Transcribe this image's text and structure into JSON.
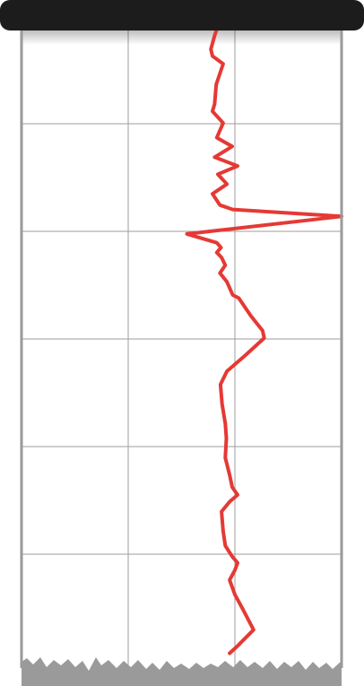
{
  "recorder": {
    "paper_color": "#ffffff",
    "grid_color": "#9e9e9e",
    "frame_color": "#9a9a9a",
    "roller_color": "#1c1c1c",
    "trace_color": "#e53935",
    "trace_color_fading": "#ef6b6b",
    "grid_columns": 3,
    "grid_rows": 6
  },
  "trace": {
    "x_min": -3,
    "x_max": 3,
    "points": [
      [
        0.6,
        0.0
      ],
      [
        0.7,
        0.011
      ],
      [
        0.62,
        0.036
      ],
      [
        0.55,
        0.064
      ],
      [
        0.58,
        0.078
      ],
      [
        0.78,
        0.094
      ],
      [
        0.65,
        0.136
      ],
      [
        0.62,
        0.176
      ],
      [
        0.58,
        0.191
      ],
      [
        0.78,
        0.215
      ],
      [
        0.66,
        0.245
      ],
      [
        0.95,
        0.263
      ],
      [
        0.62,
        0.285
      ],
      [
        1.05,
        0.303
      ],
      [
        0.68,
        0.32
      ],
      [
        0.85,
        0.34
      ],
      [
        0.58,
        0.36
      ],
      [
        0.72,
        0.383
      ],
      [
        0.96,
        0.392
      ],
      [
        3.0,
        0.406
      ],
      [
        0.1,
        0.442
      ],
      [
        0.66,
        0.46
      ],
      [
        0.74,
        0.47
      ],
      [
        0.66,
        0.48
      ],
      [
        0.75,
        0.49
      ],
      [
        0.82,
        0.506
      ],
      [
        0.72,
        0.522
      ],
      [
        0.85,
        0.54
      ],
      [
        0.96,
        0.567
      ],
      [
        1.07,
        0.573
      ],
      [
        1.3,
        0.61
      ],
      [
        1.52,
        0.64
      ],
      [
        1.55,
        0.655
      ],
      [
        1.2,
        0.69
      ],
      [
        0.85,
        0.723
      ],
      [
        0.73,
        0.75
      ],
      [
        0.76,
        0.79
      ],
      [
        0.82,
        0.83
      ],
      [
        0.84,
        0.86
      ],
      [
        0.82,
        0.9
      ],
      [
        0.9,
        0.935
      ],
      [
        0.95,
        0.96
      ],
      [
        1.05,
        0.976
      ],
      [
        0.9,
        0.99
      ],
      [
        0.75,
        1.01
      ],
      [
        0.78,
        1.05
      ],
      [
        0.82,
        1.08
      ],
      [
        0.95,
        1.102
      ],
      [
        1.05,
        1.115
      ],
      [
        1.0,
        1.13
      ],
      [
        0.9,
        1.15
      ],
      [
        1.0,
        1.18
      ],
      [
        1.15,
        1.21
      ],
      [
        1.35,
        1.252
      ],
      [
        1.05,
        1.285
      ],
      [
        0.9,
        1.3
      ]
    ]
  }
}
